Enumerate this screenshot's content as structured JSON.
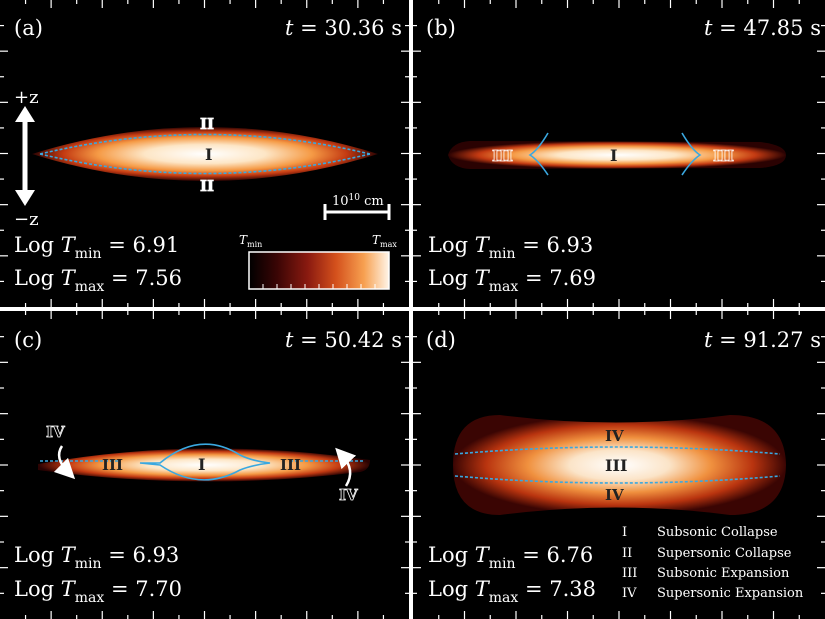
{
  "panels": [
    {
      "tag": "(a)",
      "time": "t = 30.36 s",
      "logtmin": "Log T",
      "tmin_sub": "min",
      "tmin_val": " = 6.91",
      "tmax_sub": "max",
      "tmax_val": " = 7.56",
      "regions": [
        "II",
        "I",
        "II"
      ]
    },
    {
      "tag": "(b)",
      "time": "t = 47.85 s",
      "tmin_sub": "min",
      "tmin_val": " = 6.93",
      "tmax_sub": "max",
      "tmax_val": " = 7.69",
      "regions": [
        "III",
        "I",
        "III"
      ]
    },
    {
      "tag": "(c)",
      "time": "t = 50.42 s",
      "tmin_sub": "min",
      "tmin_val": " = 6.93",
      "tmax_sub": "max",
      "tmax_val": " = 7.70",
      "regions": [
        "IV",
        "III",
        "I",
        "III",
        "IV"
      ]
    },
    {
      "tag": "(d)",
      "time": "t = 91.27 s",
      "tmin_sub": "min",
      "tmin_val": " = 6.76",
      "tmax_sub": "max",
      "tmax_val": " = 7.38",
      "regions": [
        "IV",
        "III",
        "IV"
      ]
    }
  ],
  "axis": {
    "plus_z": "+z",
    "minus_z": "−z"
  },
  "scale_bar": {
    "label": "10",
    "exp": "10",
    "unit": " cm"
  },
  "colorbar": {
    "min_label": "T",
    "min_sub": "min",
    "max_label": "T",
    "max_sub": "max",
    "colors": [
      "#000000",
      "#3a0505",
      "#8a1a10",
      "#d4501c",
      "#f7a050",
      "#fff5e8"
    ]
  },
  "legend": [
    {
      "num": "I",
      "text": "Subsonic Collapse"
    },
    {
      "num": "II",
      "text": "Supersonic Collapse"
    },
    {
      "num": "III",
      "text": "Subsonic Expansion"
    },
    {
      "num": "IV",
      "text": "Supersonic Expansion"
    }
  ]
}
